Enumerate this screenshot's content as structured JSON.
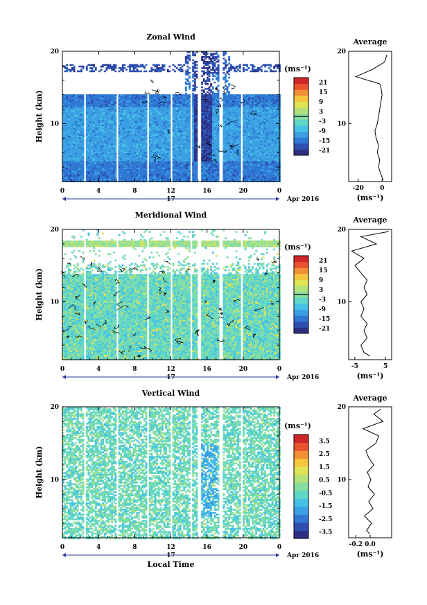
{
  "figure": {
    "xlabel": "Local Time",
    "date_label": "Apr 2016",
    "day_label": "17"
  },
  "chart_data": [
    {
      "type": "heatmap",
      "title": "Zonal Wind",
      "ylabel": "Height (km)",
      "xlim": [
        0,
        24
      ],
      "ylim": [
        2,
        20
      ],
      "x_ticks": [
        "0",
        "4",
        "8",
        "12",
        "16",
        "20",
        "0"
      ],
      "y_ticks": [
        "10",
        "20"
      ],
      "colorbar": {
        "unit_label": "(ms⁻¹)",
        "range": [
          -24,
          24
        ],
        "tick_labels": [
          "21",
          "15",
          "9",
          "3",
          "-3",
          "-9",
          "-15",
          "-21"
        ]
      },
      "average_profile": {
        "title": "Average",
        "xlabel": "(ms⁻¹)",
        "x_ticks": [
          "-20",
          "0"
        ],
        "xlim": [
          -28,
          8
        ],
        "height_km": [
          2.2,
          3,
          4,
          5,
          6,
          7,
          8,
          9,
          10,
          11,
          12,
          13,
          14,
          15,
          15.5,
          16.5,
          17.5,
          18.5,
          19.5
        ],
        "wind_ms": [
          1,
          -1,
          -3,
          -2,
          -4,
          -3,
          -5,
          -6,
          -4,
          -3,
          -2,
          -1,
          0,
          -1,
          -2,
          -22,
          -8,
          2,
          4
        ]
      }
    },
    {
      "type": "heatmap",
      "title": "Meridional Wind",
      "ylabel": "Height (km)",
      "xlim": [
        0,
        24
      ],
      "ylim": [
        2,
        20
      ],
      "x_ticks": [
        "0",
        "4",
        "8",
        "12",
        "16",
        "20",
        "0"
      ],
      "y_ticks": [
        "10",
        "20"
      ],
      "colorbar": {
        "unit_label": "(ms⁻¹)",
        "range": [
          -24,
          24
        ],
        "tick_labels": [
          "21",
          "15",
          "9",
          "3",
          "-3",
          "-9",
          "-15",
          "-21"
        ]
      },
      "average_profile": {
        "title": "Average",
        "xlabel": "(ms⁻¹)",
        "x_ticks": [
          "-5",
          "5"
        ],
        "xlim": [
          -7,
          7
        ],
        "height_km": [
          2.5,
          3,
          4,
          5,
          6,
          7,
          8,
          9,
          10,
          11,
          12,
          13,
          14,
          15,
          16,
          17,
          18,
          19,
          19.7
        ],
        "wind_ms": [
          0,
          -2,
          -3,
          -1,
          -2,
          -1,
          -3,
          -2,
          -3,
          -1,
          -2,
          -1,
          -3,
          -5,
          -2,
          -6,
          2,
          -3,
          6
        ]
      }
    },
    {
      "type": "heatmap",
      "title": "Vertical Wind",
      "ylabel": "Height (km)",
      "xlim": [
        0,
        24
      ],
      "ylim": [
        2,
        20
      ],
      "x_ticks": [
        "0",
        "4",
        "8",
        "12",
        "16",
        "20",
        "0"
      ],
      "y_ticks": [
        "10",
        "20"
      ],
      "colorbar": {
        "unit_label": "(ms⁻¹)",
        "range": [
          -4,
          4
        ],
        "tick_labels": [
          "3.5",
          "2.5",
          "1.5",
          "0.5",
          "-0.5",
          "-1.5",
          "-2.5",
          "-3.5"
        ]
      },
      "average_profile": {
        "title": "Average",
        "xlabel": "(ms⁻¹)",
        "x_ticks": [
          "-0.2",
          "0.0"
        ],
        "xlim": [
          -0.3,
          0.3
        ],
        "height_km": [
          2.5,
          3,
          4,
          5,
          6,
          7,
          8,
          9,
          10,
          11,
          12,
          13,
          14,
          15,
          16,
          17,
          18,
          19,
          19.7
        ],
        "wind_ms": [
          0.0,
          -0.05,
          0.02,
          -0.08,
          0.04,
          -0.02,
          0.06,
          -0.03,
          0.01,
          -0.04,
          0.05,
          -0.02,
          -0.06,
          0.08,
          0.12,
          -0.1,
          0.18,
          0.05,
          0.15
        ]
      }
    }
  ],
  "colors": [
    "#2d2f82",
    "#2e4fb0",
    "#2f78d4",
    "#3ba0e3",
    "#46c2e6",
    "#5fd6c8",
    "#86dea2",
    "#b4e27a",
    "#dfe354",
    "#f5c63c",
    "#f49034",
    "#ea5230",
    "#d0262a"
  ]
}
